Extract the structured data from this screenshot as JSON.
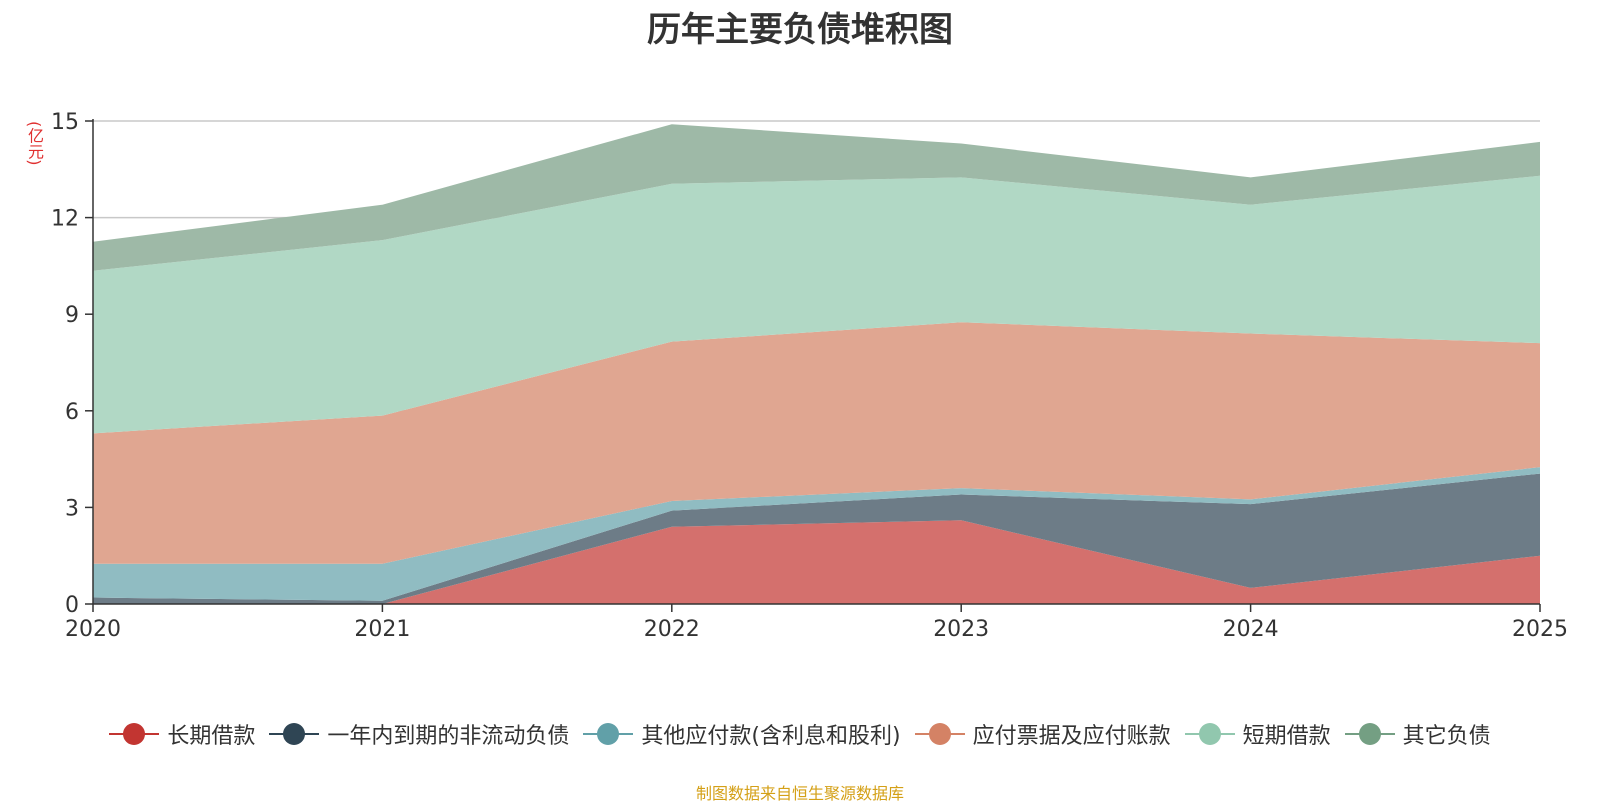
{
  "chart_data": {
    "type": "area",
    "stacked": true,
    "title": "历年主要负债堆积图",
    "unit": "(亿元)",
    "categories": [
      "2020",
      "2021",
      "2022",
      "2023",
      "2024",
      "2025"
    ],
    "y_ticks": [
      "0",
      "3",
      "6",
      "9",
      "12",
      "15"
    ],
    "ylim": [
      0,
      15
    ],
    "series": [
      {
        "name": "长期借款",
        "color": "#c23531",
        "area_color": "#d4706d",
        "values": [
          0.0,
          0.0,
          2.4,
          2.6,
          0.5,
          1.5
        ]
      },
      {
        "name": "一年内到期的非流动负债",
        "color": "#2f4554",
        "area_color": "#6d7c87",
        "values": [
          0.2,
          0.1,
          0.5,
          0.8,
          2.6,
          2.55
        ]
      },
      {
        "name": "其他应付款(含利息和股利)",
        "color": "#61a0a8",
        "area_color": "#90bcc2",
        "values": [
          1.05,
          1.15,
          0.3,
          0.2,
          0.15,
          0.2
        ]
      },
      {
        "name": "应付票据及应付账款",
        "color": "#d48265",
        "area_color": "#e0a691",
        "values": [
          4.05,
          4.6,
          4.95,
          5.15,
          5.15,
          3.85
        ]
      },
      {
        "name": "短期借款",
        "color": "#91c7ae",
        "area_color": "#b1d8c5",
        "values": [
          5.05,
          5.45,
          4.9,
          4.5,
          4.0,
          5.2
        ]
      },
      {
        "name": "其它负债",
        "color": "#749f83",
        "area_color": "#9eb9a7",
        "values": [
          0.9,
          1.1,
          1.85,
          1.05,
          0.85,
          1.05
        ]
      }
    ],
    "legend_position": "bottom",
    "grid": true
  },
  "source_note": "制图数据来自恒生聚源数据库"
}
